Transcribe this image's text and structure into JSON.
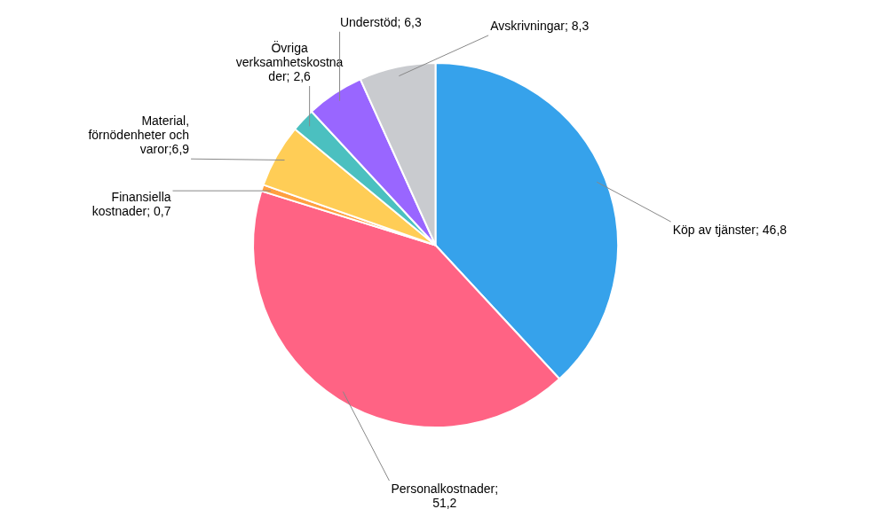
{
  "chart_data": {
    "type": "pie",
    "categories": [
      "Köp av tjänster; 46,8",
      "Personalkostnader;\n51,2",
      "Finansiella\nkostnader; 0,7",
      "Material,\nförnödenheter och\nvaror;6,9",
      "Övriga\nverksamhetskostna\nder; 2,6",
      "Understöd; 6,3",
      "Avskrivningar; 8,3"
    ],
    "values": [
      46.8,
      51.2,
      0.7,
      6.9,
      2.6,
      6.3,
      8.3
    ]
  }
}
